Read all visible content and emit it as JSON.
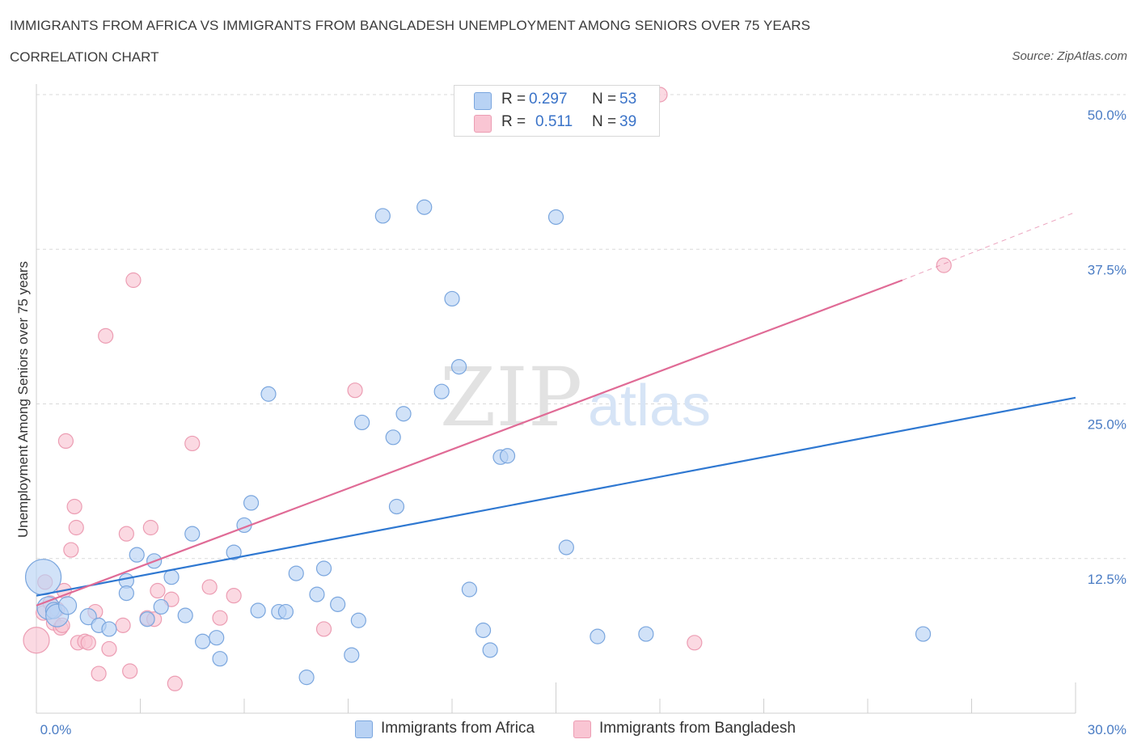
{
  "header": {
    "title": "IMMIGRANTS FROM AFRICA VS IMMIGRANTS FROM BANGLADESH UNEMPLOYMENT AMONG SENIORS OVER 75 YEARS",
    "subtitle": "CORRELATION CHART",
    "source": "Source: ZipAtlas.com"
  },
  "legend": {
    "africa": {
      "r_label": "R =",
      "r_value": "0.297",
      "n_label": "N =",
      "n_value": "53"
    },
    "bangladesh": {
      "r_label": "R =",
      "r_value": "0.511",
      "n_label": "N =",
      "n_value": "39"
    }
  },
  "watermark": {
    "zip": "ZIP",
    "atlas": "atlas"
  },
  "colors": {
    "africa_fill": "#b8d2f4",
    "africa_stroke": "#7aa6de",
    "africa_line": "#2f78d1",
    "bangladesh_fill": "#f9c5d3",
    "bangladesh_stroke": "#ec9db3",
    "bangladesh_line": "#e06b96",
    "tick_text": "#4a7cc4",
    "grid": "#d9d9d9"
  },
  "chart_data": {
    "type": "scatter",
    "title": "IMMIGRANTS FROM AFRICA VS IMMIGRANTS FROM BANGLADESH UNEMPLOYMENT AMONG SENIORS OVER 75 YEARS",
    "subtitle": "CORRELATION CHART",
    "xlabel": "",
    "ylabel": "Unemployment Among Seniors over 75 years",
    "xlim": [
      0,
      30
    ],
    "ylim": [
      0,
      50
    ],
    "x_tick_labels": [
      "0.0%",
      "30.0%"
    ],
    "y_ticks": [
      12.5,
      25.0,
      37.5,
      50.0
    ],
    "y_tick_labels": [
      "12.5%",
      "25.0%",
      "37.5%",
      "50.0%"
    ],
    "grid": "horizontal dashed",
    "legend_position": "bottom-center",
    "series": [
      {
        "name": "Immigrants from Africa",
        "R": 0.297,
        "N": 53,
        "trend": {
          "x": [
            0,
            30
          ],
          "y": [
            9.5,
            25.5
          ]
        },
        "points": [
          [
            0.2,
            11.0,
            22
          ],
          [
            0.35,
            8.5,
            14
          ],
          [
            0.5,
            8.3,
            10
          ],
          [
            0.6,
            7.9,
            14
          ],
          [
            0.9,
            8.7,
            11
          ],
          [
            1.5,
            7.8,
            10
          ],
          [
            1.8,
            7.1,
            9
          ],
          [
            2.1,
            6.8,
            9
          ],
          [
            2.6,
            10.7,
            9
          ],
          [
            2.6,
            9.7,
            9
          ],
          [
            2.9,
            12.8,
            9
          ],
          [
            3.2,
            7.6,
            9
          ],
          [
            3.4,
            12.3,
            9
          ],
          [
            3.6,
            8.6,
            9
          ],
          [
            3.9,
            11.0,
            9
          ],
          [
            4.3,
            7.9,
            9
          ],
          [
            4.5,
            14.5,
            9
          ],
          [
            4.8,
            5.8,
            9
          ],
          [
            5.2,
            6.1,
            9
          ],
          [
            5.3,
            4.4,
            9
          ],
          [
            5.7,
            13.0,
            9
          ],
          [
            6.0,
            15.2,
            9
          ],
          [
            6.2,
            17.0,
            9
          ],
          [
            6.4,
            8.3,
            9
          ],
          [
            6.7,
            25.8,
            9
          ],
          [
            7.0,
            8.2,
            9
          ],
          [
            7.2,
            8.2,
            9
          ],
          [
            7.5,
            11.3,
            9
          ],
          [
            7.8,
            2.9,
            9
          ],
          [
            8.1,
            9.6,
            9
          ],
          [
            8.3,
            11.7,
            9
          ],
          [
            8.7,
            8.8,
            9
          ],
          [
            9.1,
            4.7,
            9
          ],
          [
            9.3,
            7.5,
            9
          ],
          [
            9.4,
            23.5,
            9
          ],
          [
            10.0,
            40.2,
            9
          ],
          [
            10.3,
            22.3,
            9
          ],
          [
            10.4,
            16.7,
            9
          ],
          [
            10.6,
            24.2,
            9
          ],
          [
            11.2,
            40.9,
            9
          ],
          [
            11.7,
            26.0,
            9
          ],
          [
            12.0,
            33.5,
            9
          ],
          [
            12.2,
            28.0,
            9
          ],
          [
            12.5,
            10.0,
            9
          ],
          [
            12.9,
            6.7,
            9
          ],
          [
            13.1,
            5.1,
            9
          ],
          [
            13.4,
            20.7,
            9
          ],
          [
            13.6,
            20.8,
            9
          ],
          [
            15.0,
            40.1,
            9
          ],
          [
            15.3,
            13.4,
            9
          ],
          [
            16.2,
            6.2,
            9
          ],
          [
            17.6,
            6.4,
            9
          ],
          [
            25.6,
            6.4,
            9
          ]
        ]
      },
      {
        "name": "Immigrants from Bangladesh",
        "R": 0.511,
        "N": 39,
        "trend": {
          "x": [
            0,
            25
          ],
          "y": [
            8.7,
            35.0
          ]
        },
        "trend_dashed_extension": {
          "x": [
            25,
            30
          ],
          "y": [
            35.0,
            40.5
          ]
        },
        "points": [
          [
            0.0,
            5.9,
            16
          ],
          [
            0.2,
            8.1,
            9
          ],
          [
            0.25,
            10.6,
            9
          ],
          [
            0.4,
            8.9,
            9
          ],
          [
            0.5,
            7.3,
            9
          ],
          [
            0.6,
            8.4,
            9
          ],
          [
            0.7,
            6.9,
            9
          ],
          [
            0.75,
            7.1,
            9
          ],
          [
            0.8,
            9.9,
            9
          ],
          [
            0.85,
            22.0,
            9
          ],
          [
            1.0,
            13.2,
            9
          ],
          [
            1.1,
            16.7,
            9
          ],
          [
            1.15,
            15.0,
            9
          ],
          [
            1.2,
            5.7,
            9
          ],
          [
            1.4,
            5.8,
            9
          ],
          [
            1.5,
            5.7,
            9
          ],
          [
            1.7,
            8.2,
            9
          ],
          [
            1.8,
            3.2,
            9
          ],
          [
            2.0,
            30.5,
            9
          ],
          [
            2.1,
            5.2,
            9
          ],
          [
            2.5,
            7.1,
            9
          ],
          [
            2.6,
            14.5,
            9
          ],
          [
            2.7,
            3.4,
            9
          ],
          [
            2.8,
            35.0,
            9
          ],
          [
            3.2,
            7.7,
            9
          ],
          [
            3.3,
            15.0,
            9
          ],
          [
            3.4,
            7.6,
            9
          ],
          [
            3.5,
            9.9,
            9
          ],
          [
            3.9,
            9.2,
            9
          ],
          [
            4.0,
            2.4,
            9
          ],
          [
            4.5,
            21.8,
            9
          ],
          [
            5.0,
            10.2,
            9
          ],
          [
            5.3,
            7.7,
            9
          ],
          [
            5.7,
            9.5,
            9
          ],
          [
            8.3,
            6.8,
            9
          ],
          [
            9.2,
            26.1,
            9
          ],
          [
            18.0,
            50.0,
            9
          ],
          [
            19.0,
            5.7,
            9
          ],
          [
            26.2,
            36.2,
            9
          ]
        ]
      }
    ]
  }
}
